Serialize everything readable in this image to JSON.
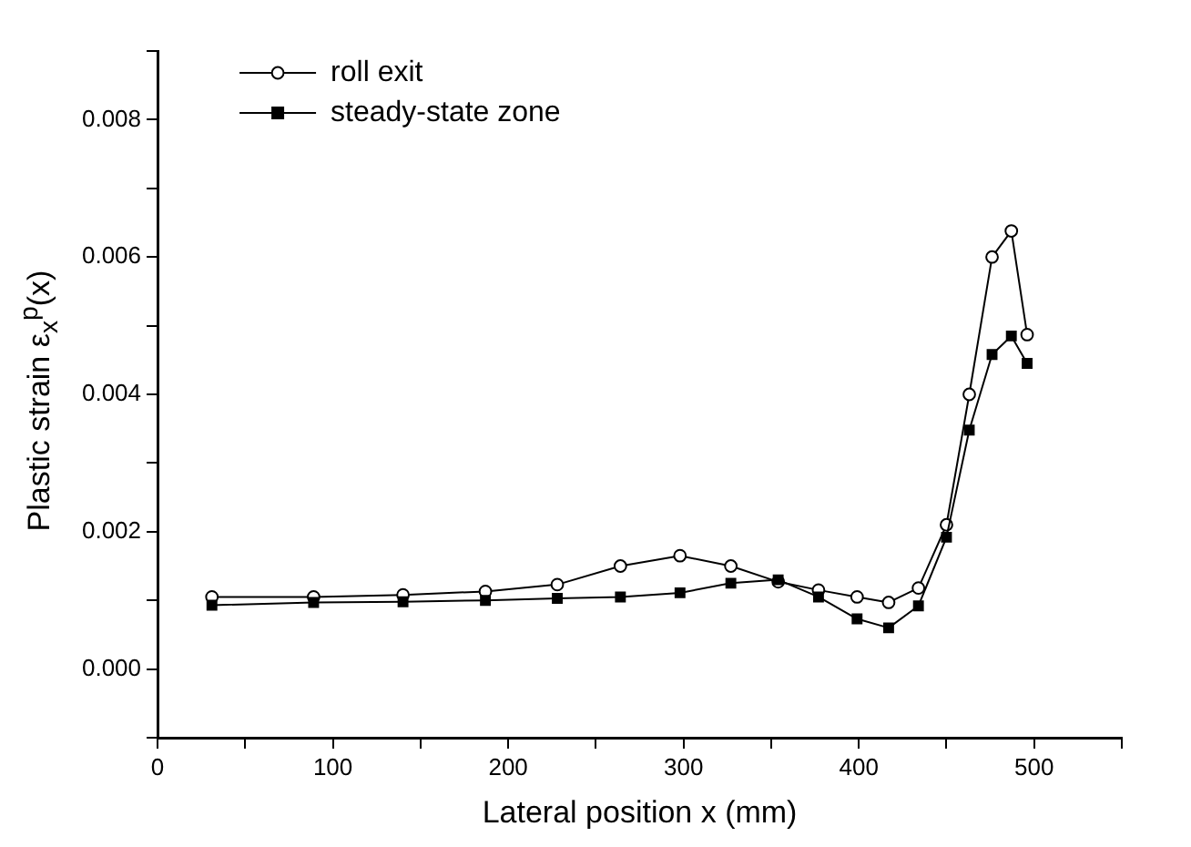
{
  "chart_data": {
    "type": "line",
    "xlabel": "Lateral position x (mm)",
    "ylabel": "Plastic strain ε$_{x}$$^{p}$(x)",
    "xlim": [
      0,
      550
    ],
    "xticks": [
      0,
      {
        "value": 50,
        "label": null
      },
      100,
      {
        "value": 150,
        "label": null
      },
      200,
      {
        "value": 250,
        "label": null
      },
      300,
      {
        "value": 350,
        "label": null
      },
      400,
      {
        "value": 450,
        "label": null
      },
      500,
      {
        "value": 550,
        "label": null
      }
    ],
    "ylim": [
      -0.001,
      0.009
    ],
    "yticks": [
      {
        "value": -0.001,
        "label": null
      },
      "0.000",
      {
        "value": 0.001,
        "label": null
      },
      {
        "value": 0.002,
        "label": "0.002"
      },
      {
        "value": 0.003,
        "label": null
      },
      {
        "value": 0.004,
        "label": "0.004"
      },
      {
        "value": 0.005,
        "label": null
      },
      {
        "value": 0.006,
        "label": "0.006"
      },
      {
        "value": 0.007,
        "label": null
      },
      {
        "value": 0.008,
        "label": "0.008"
      },
      {
        "value": 0.009,
        "label": null
      }
    ],
    "grid": false,
    "legend": "top left",
    "line_style": "solid",
    "x": [
      31,
      89,
      140,
      187,
      228,
      264,
      298,
      327,
      354,
      377,
      399,
      417,
      434,
      450,
      463,
      476,
      487,
      496
    ],
    "series": [
      {
        "name": "roll exit",
        "color": "#000000",
        "marker": "circle",
        "values": [
          0.00105,
          0.00105,
          0.00108,
          0.00113,
          0.00123,
          0.0015,
          0.00165,
          0.0015,
          0.00127,
          0.00115,
          0.00105,
          0.00097,
          0.00118,
          0.0021,
          0.004,
          0.006,
          0.00638,
          0.00487
        ]
      },
      {
        "name": "steady-state zone",
        "color": "#000000",
        "marker": "square",
        "values": [
          0.00093,
          0.00097,
          0.00098,
          0.001,
          0.00103,
          0.00105,
          0.00111,
          0.00125,
          0.0013,
          0.00105,
          0.00073,
          0.0006,
          0.00092,
          0.00192,
          0.00348,
          0.00458,
          0.00485,
          0.00445
        ]
      }
    ]
  }
}
